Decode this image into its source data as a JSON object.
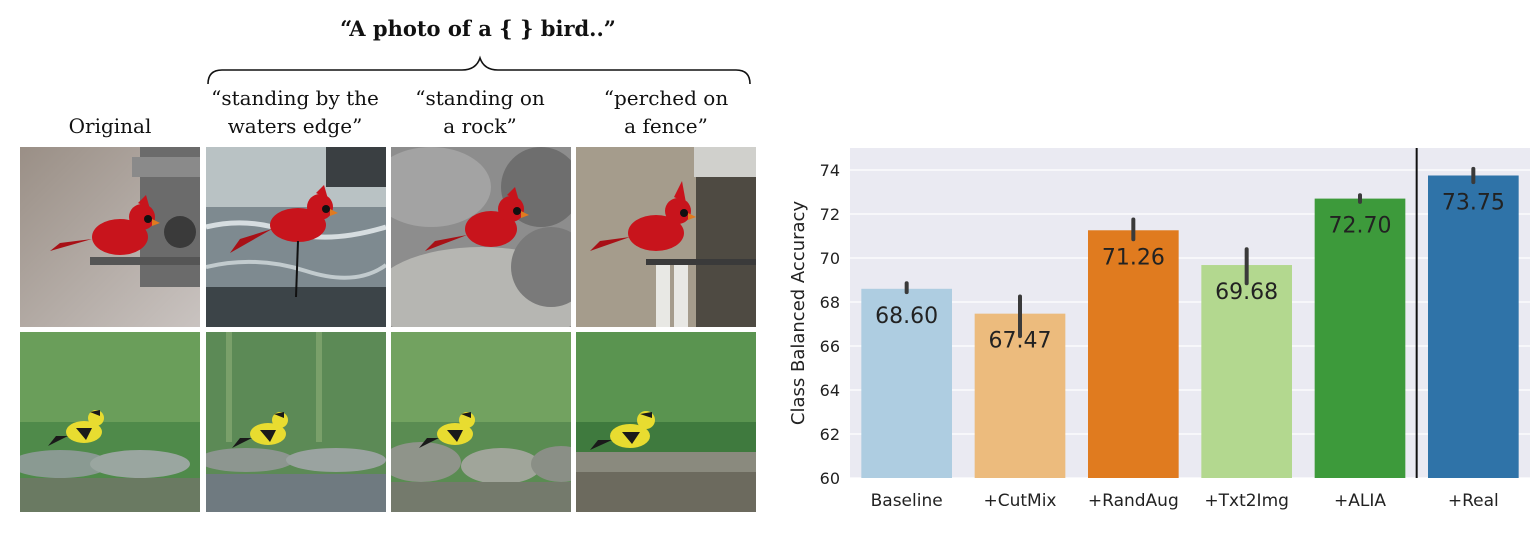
{
  "left_panel": {
    "prompt_title": "“A photo of a { } bird..”",
    "columns": [
      {
        "label": "Original"
      },
      {
        "label": "“standing by the\nwaters edge”"
      },
      {
        "label": "“standing on\na rock”"
      },
      {
        "label": "“perched on\na fence”"
      }
    ],
    "rows": [
      {
        "subject": "red cardinal",
        "bird_color": "#c8141c",
        "accent_color": "#1a1a1a"
      },
      {
        "subject": "yellow goldfinch",
        "bird_color": "#e8dc30",
        "accent_color": "#1a1a1a"
      }
    ]
  },
  "chart_data": {
    "type": "bar",
    "title": "",
    "xlabel": "",
    "ylabel": "Class Balanced Accuracy",
    "ylim": [
      60,
      75
    ],
    "yticks": [
      60,
      62,
      64,
      66,
      68,
      70,
      72,
      74
    ],
    "grid": true,
    "categories": [
      "Baseline",
      "+CutMix",
      "+RandAug",
      "+Txt2Img",
      "+ALIA",
      "+Real"
    ],
    "values": [
      68.6,
      67.47,
      71.26,
      69.68,
      72.7,
      73.75
    ],
    "value_labels": [
      "68.60",
      "67.47",
      "71.26",
      "69.68",
      "72.70",
      "73.75"
    ],
    "error_low": [
      68.45,
      66.45,
      70.85,
      68.85,
      72.55,
      73.45
    ],
    "error_high": [
      68.85,
      68.25,
      71.75,
      70.4,
      72.85,
      74.05
    ],
    "colors": [
      "#aecde1",
      "#ecbb7d",
      "#e07b1f",
      "#b3d88f",
      "#3d9a3b",
      "#2f73a8"
    ],
    "separator_after_index": 4,
    "background_color": "#eaeaf2"
  }
}
